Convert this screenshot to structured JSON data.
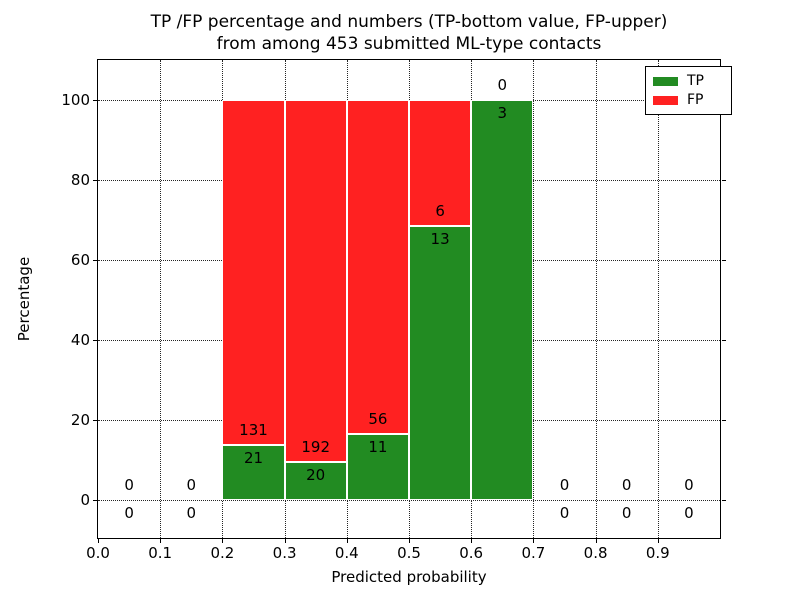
{
  "figure": {
    "title_line1": "TP /FP percentage and numbers (TP-bottom value, FP-upper)",
    "title_line2": "from among 453 submitted ML-type contacts"
  },
  "chart_data": {
    "type": "bar",
    "stacked": true,
    "title": "TP /FP percentage and numbers (TP-bottom value, FP-upper)\nfrom among 453 submitted ML-type contacts",
    "xlabel": "Predicted probability",
    "ylabel": "Percentage",
    "xlim": [
      0.0,
      1.0
    ],
    "ylim": [
      -9.5,
      110
    ],
    "x_ticks": [
      0.0,
      0.1,
      0.2,
      0.3,
      0.4,
      0.5,
      0.6,
      0.7,
      0.8,
      0.9
    ],
    "x_tick_labels": [
      "0.0",
      "0.1",
      "0.2",
      "0.3",
      "0.4",
      "0.5",
      "0.6",
      "0.7",
      "0.8",
      "0.9"
    ],
    "y_ticks": [
      0,
      20,
      40,
      60,
      80,
      100
    ],
    "y_tick_labels": [
      "0",
      "20",
      "40",
      "60",
      "80",
      "100"
    ],
    "grid": "dotted-black-on",
    "legend_position": "upper right",
    "total_contacts": 453,
    "series": [
      {
        "name": "TP",
        "color": "#228B22"
      },
      {
        "name": "FP",
        "color": "#FF2121"
      }
    ],
    "bar_edge_color": "#ffffff",
    "bins": [
      {
        "x0": 0.0,
        "x1": 0.1,
        "tp": 0,
        "fp": 0,
        "tp_pct": 0
      },
      {
        "x0": 0.1,
        "x1": 0.2,
        "tp": 0,
        "fp": 0,
        "tp_pct": 0
      },
      {
        "x0": 0.2,
        "x1": 0.3,
        "tp": 21,
        "fp": 131,
        "tp_pct": 13.8
      },
      {
        "x0": 0.3,
        "x1": 0.4,
        "tp": 20,
        "fp": 192,
        "tp_pct": 9.4
      },
      {
        "x0": 0.4,
        "x1": 0.5,
        "tp": 11,
        "fp": 56,
        "tp_pct": 16.4
      },
      {
        "x0": 0.5,
        "x1": 0.6,
        "tp": 13,
        "fp": 6,
        "tp_pct": 68.4
      },
      {
        "x0": 0.6,
        "x1": 0.7,
        "tp": 3,
        "fp": 0,
        "tp_pct": 100.0
      },
      {
        "x0": 0.7,
        "x1": 0.8,
        "tp": 0,
        "fp": 0,
        "tp_pct": 0
      },
      {
        "x0": 0.8,
        "x1": 0.9,
        "tp": 0,
        "fp": 0,
        "tp_pct": 0
      },
      {
        "x0": 0.9,
        "x1": 1.0,
        "tp": 0,
        "fp": 0,
        "tp_pct": 0
      }
    ]
  }
}
